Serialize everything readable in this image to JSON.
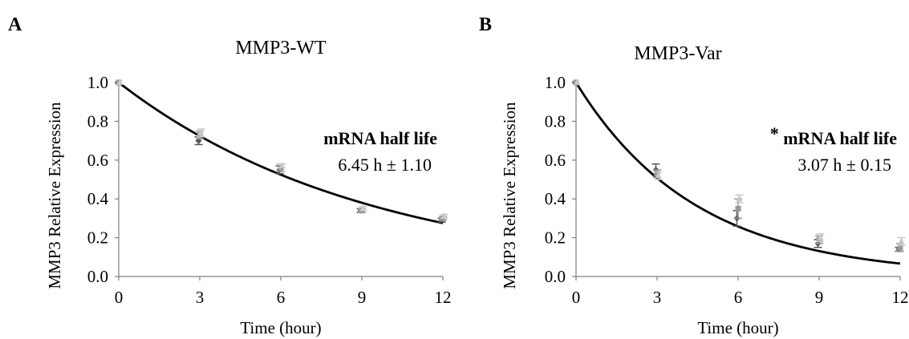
{
  "chart_data": [
    {
      "type": "scatter",
      "panel_label": "A",
      "title": "MMP3-WT",
      "xlabel": "Time (hour)",
      "ylabel": "MMP3 Relative Expression",
      "xlim": [
        0,
        12
      ],
      "ylim": [
        0,
        1.0
      ],
      "x_ticks": [
        "0",
        "3",
        "6",
        "9",
        "12"
      ],
      "y_ticks": [
        "0.0",
        "0.2",
        "0.4",
        "0.6",
        "0.8",
        "1.0"
      ],
      "grid": false,
      "fit": {
        "type": "exponential-decay",
        "half_life_h": 6.45
      },
      "annotation": {
        "marker": "",
        "title": "mRNA half life",
        "value": "6.45 h ± 1.10"
      },
      "series": [
        {
          "color": "#555555",
          "x": [
            0,
            3,
            6,
            9,
            12
          ],
          "y": [
            1.0,
            0.7,
            0.55,
            0.34,
            0.29
          ],
          "err": [
            0,
            0.02,
            0.02,
            0.01,
            0.01
          ]
        },
        {
          "color": "#999999",
          "x": [
            0,
            3,
            6,
            9,
            12
          ],
          "y": [
            1.0,
            0.73,
            0.56,
            0.34,
            0.3
          ],
          "err": [
            0,
            0.02,
            0.02,
            0.01,
            0.01
          ]
        },
        {
          "color": "#c8c8c8",
          "x": [
            0,
            3,
            6,
            9,
            12
          ],
          "y": [
            1.0,
            0.74,
            0.57,
            0.35,
            0.31
          ],
          "err": [
            0,
            0.02,
            0.01,
            0.01,
            0.01
          ]
        }
      ]
    },
    {
      "type": "scatter",
      "panel_label": "B",
      "title": "MMP3-Var",
      "xlabel": "Time (hour)",
      "ylabel": "MMP3 Relative Expression",
      "xlim": [
        0,
        12
      ],
      "ylim": [
        0,
        1.0
      ],
      "x_ticks": [
        "0",
        "3",
        "6",
        "9",
        "12"
      ],
      "y_ticks": [
        "0.0",
        "0.2",
        "0.4",
        "0.6",
        "0.8",
        "1.0"
      ],
      "grid": false,
      "fit": {
        "type": "exponential-decay",
        "half_life_h": 3.07
      },
      "annotation": {
        "marker": "*",
        "title": "mRNA half life",
        "value": "3.07 h ± 0.15"
      },
      "series": [
        {
          "color": "#555555",
          "x": [
            0,
            3,
            6,
            9,
            12
          ],
          "y": [
            1.0,
            0.55,
            0.3,
            0.17,
            0.14
          ],
          "err": [
            0,
            0.03,
            0.04,
            0.02,
            0.01
          ]
        },
        {
          "color": "#999999",
          "x": [
            0,
            3,
            6,
            9,
            12
          ],
          "y": [
            1.0,
            0.53,
            0.35,
            0.19,
            0.15
          ],
          "err": [
            0,
            0.02,
            0.05,
            0.02,
            0.02
          ]
        },
        {
          "color": "#c8c8c8",
          "x": [
            0,
            3,
            6,
            9,
            12
          ],
          "y": [
            1.0,
            0.52,
            0.4,
            0.2,
            0.18
          ],
          "err": [
            0,
            0.02,
            0.02,
            0.02,
            0.02
          ]
        }
      ]
    }
  ]
}
